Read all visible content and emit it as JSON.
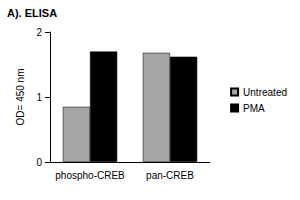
{
  "chart_data": {
    "type": "bar",
    "title": "A). ELISA",
    "y_label": "OD= 450 nm",
    "categories": [
      "phospho-CREB",
      "pan-CREB"
    ],
    "series": [
      {
        "name": "Untreated",
        "color": "#a6a6a6",
        "values": [
          0.85,
          1.68
        ]
      },
      {
        "name": "PMA",
        "color": "#000000",
        "values": [
          1.7,
          1.62
        ]
      }
    ],
    "ylim": [
      0,
      2
    ],
    "yticks": [
      0,
      1,
      2
    ],
    "grid": false,
    "legend": "right"
  }
}
